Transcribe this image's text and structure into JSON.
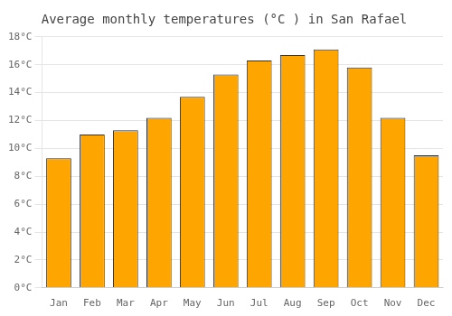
{
  "chart_data": {
    "type": "bar",
    "title": "Average monthly temperatures (°C ) in San Rafael",
    "categories": [
      "Jan",
      "Feb",
      "Mar",
      "Apr",
      "May",
      "Jun",
      "Jul",
      "Aug",
      "Sep",
      "Oct",
      "Nov",
      "Dec"
    ],
    "values": [
      9.3,
      11.0,
      11.3,
      12.2,
      13.7,
      15.3,
      16.3,
      16.7,
      17.1,
      15.8,
      12.2,
      9.5
    ],
    "color": "#FFA500",
    "ylim": [
      0,
      18
    ],
    "yticks": [
      {
        "value": 0,
        "label": "0°C"
      },
      {
        "value": 2,
        "label": "2°C"
      },
      {
        "value": 4,
        "label": "4°C"
      },
      {
        "value": 6,
        "label": "6°C"
      },
      {
        "value": 8,
        "label": "8°C"
      },
      {
        "value": 10,
        "label": "10°C"
      },
      {
        "value": 12,
        "label": "12°C"
      },
      {
        "value": 14,
        "label": "14°C"
      },
      {
        "value": 16,
        "label": "16°C"
      },
      {
        "value": 18,
        "label": "18°C"
      }
    ],
    "grid": true
  }
}
